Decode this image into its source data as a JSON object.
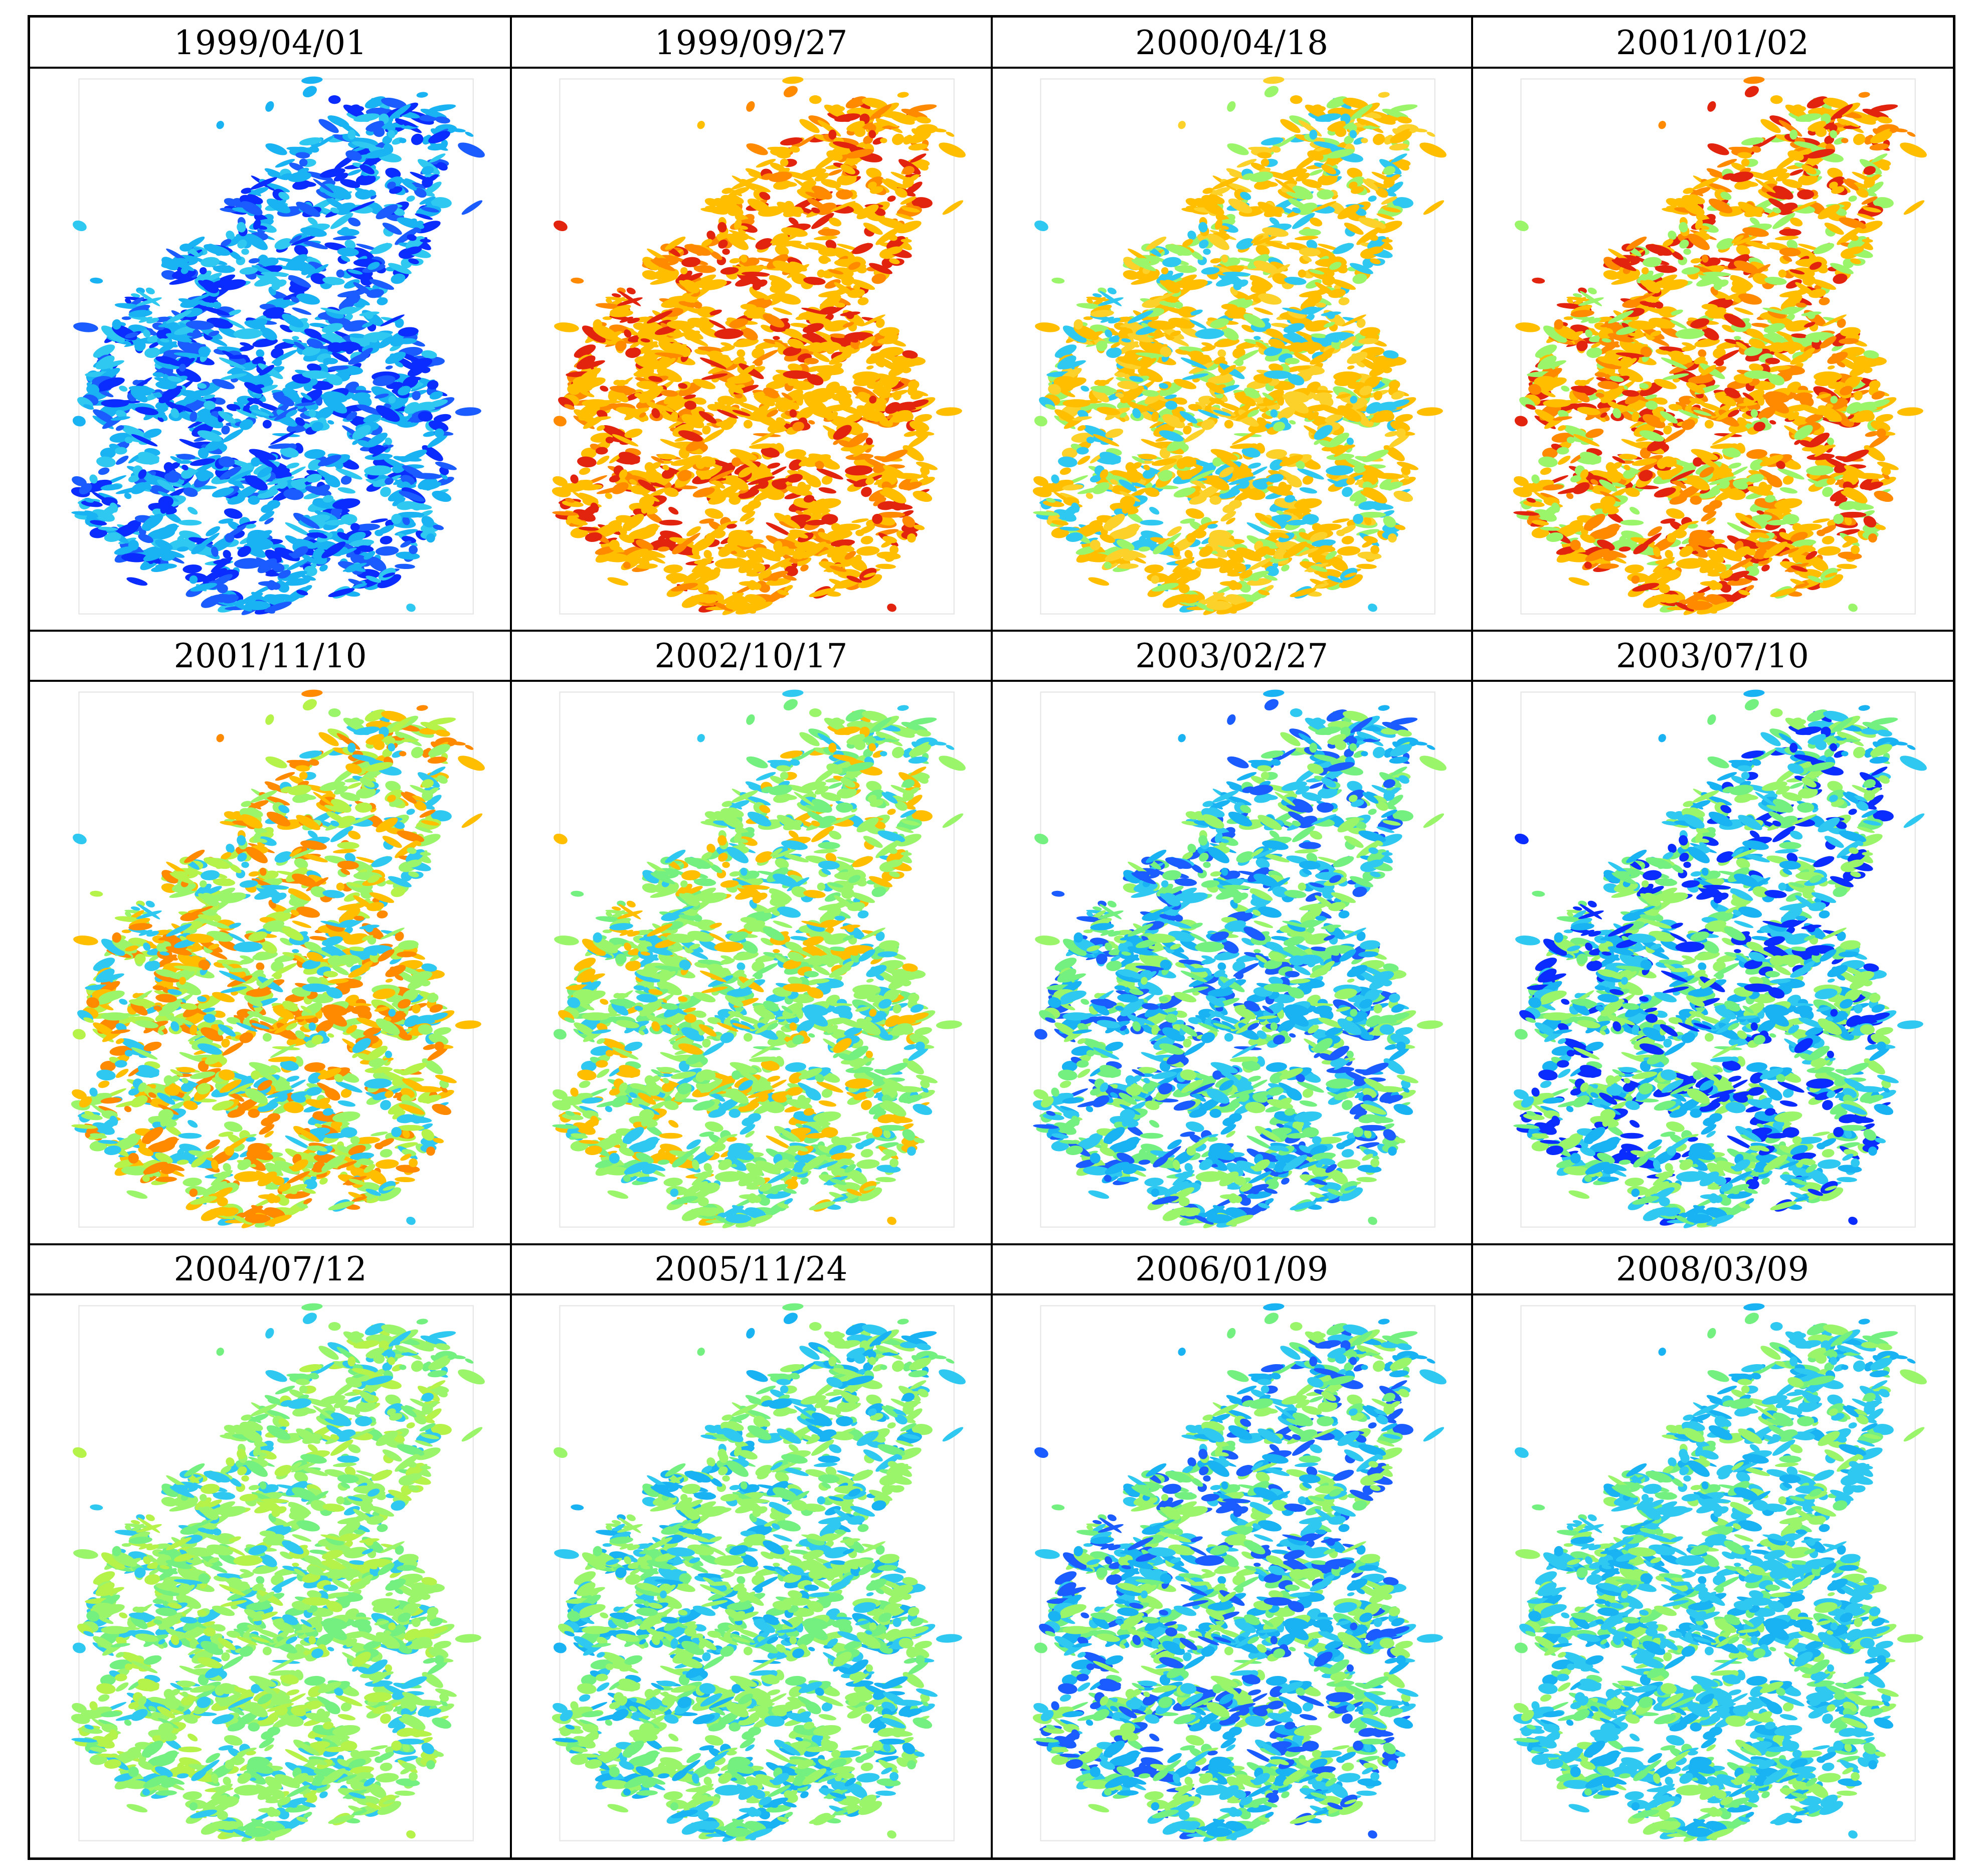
{
  "panels": [
    {
      "date": "1999/04/01",
      "palette": [
        "#0a2cff",
        "#1a5cff",
        "#19b2f2",
        "#19b2f2",
        "#2fc8f0"
      ]
    },
    {
      "date": "1999/09/27",
      "palette": [
        "#ffbf00",
        "#ffbf00",
        "#ffbf00",
        "#ff8a00",
        "#e2240f"
      ]
    },
    {
      "date": "2000/04/18",
      "palette": [
        "#ffbf00",
        "#ffbf00",
        "#fcd22a",
        "#9bf56b",
        "#2fc8f0"
      ]
    },
    {
      "date": "2001/01/02",
      "palette": [
        "#ffbf00",
        "#ffbf00",
        "#ff8a00",
        "#e2240f",
        "#9bf56b"
      ]
    },
    {
      "date": "2001/11/10",
      "palette": [
        "#9bf56b",
        "#ffbf00",
        "#ff8a00",
        "#b5f24a",
        "#2fc8f0"
      ]
    },
    {
      "date": "2002/10/17",
      "palette": [
        "#9bf56b",
        "#9bf56b",
        "#2fc8f0",
        "#74f080",
        "#ffbf00"
      ]
    },
    {
      "date": "2003/02/27",
      "palette": [
        "#2fc8f0",
        "#9bf56b",
        "#19b2f2",
        "#1a5cff",
        "#74f080"
      ]
    },
    {
      "date": "2003/07/10",
      "palette": [
        "#9bf56b",
        "#2fc8f0",
        "#19b2f2",
        "#74f080",
        "#0a2cff"
      ]
    },
    {
      "date": "2004/07/12",
      "palette": [
        "#9bf56b",
        "#9bf56b",
        "#74f080",
        "#2fc8f0",
        "#b5f24a"
      ]
    },
    {
      "date": "2005/11/24",
      "palette": [
        "#9bf56b",
        "#2fc8f0",
        "#74f080",
        "#19b2f2",
        "#9bf56b"
      ]
    },
    {
      "date": "2006/01/09",
      "palette": [
        "#9bf56b",
        "#2fc8f0",
        "#19b2f2",
        "#74f080",
        "#1a5cff"
      ]
    },
    {
      "date": "2008/03/09",
      "palette": [
        "#2fc8f0",
        "#9bf56b",
        "#19b2f2",
        "#74f080",
        "#2fc8f0"
      ]
    }
  ]
}
